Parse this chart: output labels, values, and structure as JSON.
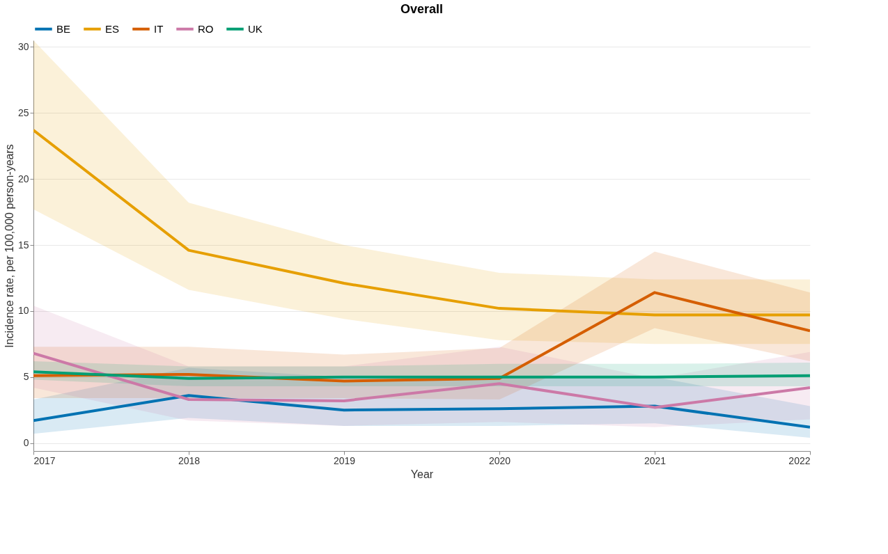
{
  "chart_data": {
    "type": "line",
    "title": "Overall",
    "xlabel": "Year",
    "ylabel": "Incidence rate, per 100,000 person-years",
    "x": [
      2017,
      2018,
      2019,
      2020,
      2021,
      2022
    ],
    "xlim": [
      2017,
      2022
    ],
    "xticks": [
      2017,
      2018,
      2019,
      2020,
      2021,
      2022
    ],
    "ylim": [
      -0.6,
      30.5
    ],
    "yticks": [
      0,
      5,
      10,
      15,
      20,
      25,
      30
    ],
    "grid": "y",
    "legend": "top",
    "line_style": "solid",
    "marker": "none",
    "series": [
      {
        "name": "BE",
        "color": "#0072b2",
        "values": [
          1.7,
          3.6,
          2.5,
          2.6,
          2.8,
          1.2
        ],
        "lower": [
          0.7,
          1.9,
          1.3,
          1.3,
          1.5,
          0.4
        ],
        "upper": [
          3.3,
          5.7,
          5.0,
          5.1,
          5.0,
          2.8
        ]
      },
      {
        "name": "ES",
        "color": "#e69f00",
        "values": [
          23.7,
          14.6,
          12.1,
          10.2,
          9.7,
          9.7
        ],
        "lower": [
          17.7,
          11.6,
          9.4,
          7.8,
          7.5,
          7.5
        ],
        "upper": [
          30.5,
          18.2,
          15.0,
          12.9,
          12.4,
          12.4
        ]
      },
      {
        "name": "IT",
        "color": "#d55e00",
        "values": [
          5.1,
          5.2,
          4.7,
          4.9,
          11.4,
          8.5
        ],
        "lower": [
          3.4,
          3.4,
          3.4,
          3.3,
          8.7,
          6.2
        ],
        "upper": [
          7.3,
          7.3,
          6.7,
          7.2,
          14.5,
          11.4
        ]
      },
      {
        "name": "RO",
        "color": "#cc79a7",
        "values": [
          6.8,
          3.3,
          3.2,
          4.5,
          2.7,
          4.2
        ],
        "lower": [
          4.2,
          1.7,
          1.3,
          1.6,
          1.2,
          1.8
        ],
        "upper": [
          10.4,
          5.8,
          5.8,
          7.3,
          4.9,
          6.9
        ]
      },
      {
        "name": "UK",
        "color": "#009e73",
        "values": [
          5.4,
          4.9,
          5.0,
          5.0,
          5.0,
          5.1
        ],
        "lower": [
          4.8,
          4.3,
          4.3,
          4.3,
          4.3,
          4.3
        ],
        "upper": [
          6.2,
          5.8,
          5.8,
          6.0,
          6.0,
          6.1
        ]
      }
    ]
  }
}
